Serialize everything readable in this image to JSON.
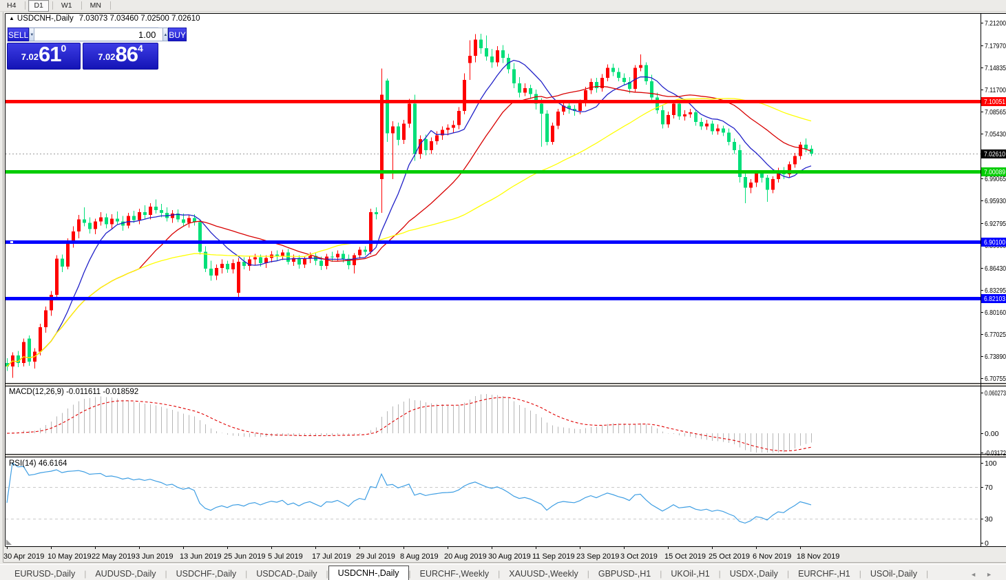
{
  "toolbar": {
    "timeframes": [
      {
        "label": "H4",
        "active": false
      },
      {
        "label": "D1",
        "active": true
      },
      {
        "label": "W1",
        "active": false
      },
      {
        "label": "MN",
        "active": false
      }
    ]
  },
  "chart_header": {
    "collapse_icon": "▲",
    "symbol": "USDCNH-,Daily",
    "ohlc": "7.03073 7.03460 7.02500 7.02610"
  },
  "trade_panel": {
    "sell_label": "SELL",
    "buy_label": "BUY",
    "volume": "1.00",
    "spin_down": "▼",
    "spin_up": "▲",
    "sell_price": {
      "small": "7.02",
      "big": "61",
      "sup": "0"
    },
    "buy_price": {
      "small": "7.02",
      "big": "86",
      "sup": "4"
    }
  },
  "tabs": {
    "items": [
      {
        "label": "EURUSD-,Daily",
        "active": false
      },
      {
        "label": "AUDUSD-,Daily",
        "active": false
      },
      {
        "label": "USDCHF-,Daily",
        "active": false
      },
      {
        "label": "USDCAD-,Daily",
        "active": false
      },
      {
        "label": "USDCNH-,Daily",
        "active": true
      },
      {
        "label": "EURCHF-,Weekly",
        "active": false
      },
      {
        "label": "XAUUSD-,Weekly",
        "active": false
      },
      {
        "label": "GBPUSD-,H1",
        "active": false
      },
      {
        "label": "UKOil-,H1",
        "active": false
      },
      {
        "label": "USDX-,Daily",
        "active": false
      },
      {
        "label": "EURCHF-,H1",
        "active": false
      },
      {
        "label": "USOil-,Daily",
        "active": false
      }
    ],
    "scroll_left": "◄",
    "scroll_right": "►"
  },
  "chart_data": {
    "type": "candlestick",
    "symbol": "USDCNH-",
    "timeframe": "Daily",
    "x_axis": {
      "bars_per_label": 8,
      "labels": [
        "30 Apr 2019",
        "10 May 2019",
        "22 May 2019",
        "3 Jun 2019",
        "13 Jun 2019",
        "25 Jun 2019",
        "5 Jul 2019",
        "17 Jul 2019",
        "29 Jul 2019",
        "8 Aug 2019",
        "20 Aug 2019",
        "30 Aug 2019",
        "11 Sep 2019",
        "23 Sep 2019",
        "3 Oct 2019",
        "15 Oct 2019",
        "25 Oct 2019",
        "6 Nov 2019",
        "18 Nov 2019"
      ]
    },
    "y_axis": {
      "ticks": [
        {
          "v": 7.212,
          "t": "7.21200"
        },
        {
          "v": 7.1797,
          "t": "7.17970"
        },
        {
          "v": 7.14835,
          "t": "7.14835"
        },
        {
          "v": 7.117,
          "t": "7.11700"
        },
        {
          "v": 7.08565,
          "t": "7.08565"
        },
        {
          "v": 7.0543,
          "t": "7.05430"
        },
        {
          "v": 7.02295,
          "t": "7.02295"
        },
        {
          "v": 6.99065,
          "t": "6.99065"
        },
        {
          "v": 6.9593,
          "t": "6.95930"
        },
        {
          "v": 6.92795,
          "t": "6.92795"
        },
        {
          "v": 6.8966,
          "t": "6.89660"
        },
        {
          "v": 6.8643,
          "t": "6.86430"
        },
        {
          "v": 6.83295,
          "t": "6.83295"
        },
        {
          "v": 6.8016,
          "t": "6.80160"
        },
        {
          "v": 6.77025,
          "t": "6.77025"
        },
        {
          "v": 6.7389,
          "t": "6.73890"
        },
        {
          "v": 6.70755,
          "t": "6.70755"
        }
      ]
    },
    "colors": {
      "up": "#FE0000",
      "down": "#00DF79",
      "ma_fast": "#2121C8",
      "ma_mid": "#D80000",
      "ma_slow": "#FFFF00",
      "macd_hist": "#B6B6B6",
      "macd_signal": "#E00000",
      "rsi": "#3E9EE3",
      "level_dash": "#C8C8C8",
      "current": "#000000",
      "current_line": "#999999"
    },
    "moving_averages": [
      {
        "period": 10,
        "color": "#2121C8"
      },
      {
        "period": 25,
        "color": "#D80000"
      },
      {
        "period": 55,
        "color": "#FFFF00"
      }
    ],
    "hlines": [
      {
        "price": 7.10051,
        "label": "7.10051",
        "color": "#FF0000"
      },
      {
        "price": 7.00089,
        "label": "7.00089",
        "color": "#00CC00"
      },
      {
        "price": 6.901,
        "label": "6.90100",
        "color": "#0000FF",
        "marker": true
      },
      {
        "price": 6.82103,
        "label": "6.82103",
        "color": "#0000FF"
      }
    ],
    "current_price": {
      "value": 7.0261,
      "label": "7.02610"
    },
    "macd": {
      "label": "MACD(12,26,9) -0.011611 -0.018592",
      "fast": 12,
      "slow": 26,
      "signal": 9,
      "value": -0.011611,
      "signal_value": -0.018592,
      "scale": [
        {
          "v": 0.060273,
          "t": "0.060273"
        },
        {
          "v": 0,
          "t": "0.00"
        },
        {
          "v": -0.03172,
          "t": "-0.03172"
        }
      ]
    },
    "rsi": {
      "label": "RSI(14) 46.6164",
      "period": 14,
      "value": 46.6164,
      "levels": [
        70,
        30
      ],
      "scale": [
        {
          "v": 100,
          "t": "100"
        },
        {
          "v": 70,
          "t": "70"
        },
        {
          "v": 30,
          "t": "30"
        },
        {
          "v": 0,
          "t": "0"
        }
      ]
    },
    "candles": [
      [
        6.729,
        6.736,
        6.718,
        6.724
      ],
      [
        6.724,
        6.744,
        6.708,
        6.74
      ],
      [
        6.74,
        6.746,
        6.723,
        6.729
      ],
      [
        6.729,
        6.764,
        6.724,
        6.759
      ],
      [
        6.764,
        6.768,
        6.725,
        6.731
      ],
      [
        6.731,
        6.75,
        6.721,
        6.745
      ],
      [
        6.745,
        6.785,
        6.74,
        6.78
      ],
      [
        6.78,
        6.809,
        6.772,
        6.804
      ],
      [
        6.804,
        6.831,
        6.796,
        6.826
      ],
      [
        6.826,
        6.882,
        6.823,
        6.877
      ],
      [
        6.877,
        6.883,
        6.858,
        6.866
      ],
      [
        6.866,
        6.906,
        6.862,
        6.901
      ],
      [
        6.901,
        6.923,
        6.893,
        6.916
      ],
      [
        6.916,
        6.939,
        6.906,
        6.933
      ],
      [
        6.933,
        6.95,
        6.923,
        6.928
      ],
      [
        6.928,
        6.936,
        6.913,
        6.919
      ],
      [
        6.919,
        6.934,
        6.912,
        6.93
      ],
      [
        6.93,
        6.943,
        6.924,
        6.936
      ],
      [
        6.936,
        6.941,
        6.92,
        6.926
      ],
      [
        6.926,
        6.94,
        6.919,
        6.934
      ],
      [
        6.934,
        6.944,
        6.926,
        6.93
      ],
      [
        6.93,
        6.938,
        6.917,
        6.924
      ],
      [
        6.924,
        6.942,
        6.92,
        6.938
      ],
      [
        6.938,
        6.945,
        6.928,
        6.932
      ],
      [
        6.932,
        6.948,
        6.926,
        6.943
      ],
      [
        6.943,
        6.953,
        6.934,
        6.939
      ],
      [
        6.939,
        6.956,
        6.933,
        6.951
      ],
      [
        6.951,
        6.961,
        6.941,
        6.946
      ],
      [
        6.946,
        6.955,
        6.936,
        6.942
      ],
      [
        6.942,
        6.95,
        6.93,
        6.935
      ],
      [
        6.935,
        6.946,
        6.928,
        6.941
      ],
      [
        6.941,
        6.947,
        6.929,
        6.933
      ],
      [
        6.933,
        6.941,
        6.923,
        6.928
      ],
      [
        6.928,
        6.939,
        6.921,
        6.935
      ],
      [
        6.935,
        6.94,
        6.924,
        6.929
      ],
      [
        6.929,
        6.933,
        6.883,
        6.887
      ],
      [
        6.887,
        6.895,
        6.858,
        6.863
      ],
      [
        6.863,
        6.874,
        6.846,
        6.853
      ],
      [
        6.853,
        6.869,
        6.847,
        6.864
      ],
      [
        6.864,
        6.876,
        6.856,
        6.87
      ],
      [
        6.87,
        6.874,
        6.857,
        6.862
      ],
      [
        6.862,
        6.876,
        6.856,
        6.871
      ],
      [
        6.829,
        6.878,
        6.8215,
        6.873
      ],
      [
        6.873,
        6.879,
        6.862,
        6.867
      ],
      [
        6.867,
        6.88,
        6.86,
        6.876
      ],
      [
        6.876,
        6.884,
        6.868,
        6.879
      ],
      [
        6.879,
        6.883,
        6.866,
        6.871
      ],
      [
        6.871,
        6.882,
        6.864,
        6.878
      ],
      [
        6.878,
        6.888,
        6.872,
        6.883
      ],
      [
        6.883,
        6.889,
        6.874,
        6.88
      ],
      [
        6.88,
        6.89,
        6.875,
        6.886
      ],
      [
        6.886,
        6.891,
        6.869,
        6.873
      ],
      [
        6.873,
        6.883,
        6.867,
        6.878
      ],
      [
        6.878,
        6.882,
        6.863,
        6.869
      ],
      [
        6.869,
        6.881,
        6.864,
        6.877
      ],
      [
        6.877,
        6.886,
        6.871,
        6.881
      ],
      [
        6.881,
        6.885,
        6.868,
        6.874
      ],
      [
        6.874,
        6.88,
        6.861,
        6.867
      ],
      [
        6.867,
        6.884,
        6.862,
        6.88
      ],
      [
        6.88,
        6.887,
        6.873,
        6.879
      ],
      [
        6.879,
        6.889,
        6.874,
        6.884
      ],
      [
        6.884,
        6.889,
        6.872,
        6.877
      ],
      [
        6.877,
        6.883,
        6.862,
        6.868
      ],
      [
        6.868,
        6.885,
        6.856,
        6.882
      ],
      [
        6.882,
        6.894,
        6.877,
        6.89
      ],
      [
        6.89,
        6.895,
        6.882,
        6.887
      ],
      [
        6.887,
        6.948,
        6.883,
        6.943
      ],
      [
        6.943,
        6.95,
        6.933,
        6.94
      ],
      [
        6.99,
        7.147,
        6.942,
        7.11
      ],
      [
        7.13,
        7.133,
        7.043,
        7.055
      ],
      [
        7.055,
        7.072,
        6.99,
        7.065
      ],
      [
        7.065,
        7.07,
        7.038,
        7.046
      ],
      [
        7.046,
        7.074,
        7.04,
        7.069
      ],
      [
        7.069,
        7.104,
        7.063,
        7.097
      ],
      [
        7.097,
        7.11,
        7.016,
        7.026
      ],
      [
        7.026,
        7.052,
        7.019,
        7.047
      ],
      [
        7.047,
        7.053,
        7.024,
        7.031
      ],
      [
        7.031,
        7.049,
        7.026,
        7.044
      ],
      [
        7.044,
        7.058,
        7.039,
        7.052
      ],
      [
        7.052,
        7.065,
        7.046,
        7.06
      ],
      [
        7.06,
        7.068,
        7.052,
        7.063
      ],
      [
        7.063,
        7.073,
        7.055,
        7.067
      ],
      [
        7.067,
        7.092,
        7.061,
        7.087
      ],
      [
        7.087,
        7.14,
        7.082,
        7.131
      ],
      [
        7.155,
        7.187,
        7.131,
        7.165
      ],
      [
        7.165,
        7.196,
        7.156,
        7.188
      ],
      [
        7.188,
        7.1965,
        7.168,
        7.176
      ],
      [
        7.176,
        7.194,
        7.158,
        7.164
      ],
      [
        7.164,
        7.175,
        7.148,
        7.156
      ],
      [
        7.156,
        7.179,
        7.15,
        7.173
      ],
      [
        7.173,
        7.18,
        7.155,
        7.162
      ],
      [
        7.162,
        7.168,
        7.14,
        7.146
      ],
      [
        7.146,
        7.155,
        7.119,
        7.126
      ],
      [
        7.126,
        7.135,
        7.106,
        7.113
      ],
      [
        7.113,
        7.126,
        7.108,
        7.119
      ],
      [
        7.119,
        7.124,
        7.104,
        7.111
      ],
      [
        7.111,
        7.117,
        7.089,
        7.097
      ],
      [
        7.097,
        7.105,
        7.036,
        7.083
      ],
      [
        7.083,
        7.088,
        7.038,
        7.043
      ],
      [
        7.043,
        7.07,
        7.039,
        7.066
      ],
      [
        7.066,
        7.09,
        7.061,
        7.086
      ],
      [
        7.086,
        7.099,
        7.081,
        7.094
      ],
      [
        7.094,
        7.098,
        7.083,
        7.09
      ],
      [
        7.09,
        7.095,
        7.08,
        7.087
      ],
      [
        7.087,
        7.103,
        7.082,
        7.098
      ],
      [
        7.098,
        7.121,
        7.093,
        7.116
      ],
      [
        7.116,
        7.133,
        7.111,
        7.128
      ],
      [
        7.128,
        7.134,
        7.113,
        7.119
      ],
      [
        7.119,
        7.139,
        7.114,
        7.134
      ],
      [
        7.134,
        7.153,
        7.129,
        7.148
      ],
      [
        7.148,
        7.154,
        7.136,
        7.142
      ],
      [
        7.142,
        7.148,
        7.129,
        7.134
      ],
      [
        7.134,
        7.14,
        7.123,
        7.128
      ],
      [
        7.128,
        7.135,
        7.112,
        7.118
      ],
      [
        7.118,
        7.152,
        7.113,
        7.148
      ],
      [
        7.148,
        7.167,
        7.143,
        7.152
      ],
      [
        7.152,
        7.156,
        7.124,
        7.129
      ],
      [
        7.129,
        7.138,
        7.101,
        7.106
      ],
      [
        7.106,
        7.113,
        7.083,
        7.088
      ],
      [
        7.088,
        7.094,
        7.062,
        7.068
      ],
      [
        7.068,
        7.086,
        7.063,
        7.081
      ],
      [
        7.081,
        7.101,
        7.076,
        7.097
      ],
      [
        7.097,
        7.102,
        7.074,
        7.079
      ],
      [
        7.079,
        7.088,
        7.073,
        7.082
      ],
      [
        7.082,
        7.09,
        7.077,
        7.085
      ],
      [
        7.085,
        7.089,
        7.066,
        7.071
      ],
      [
        7.071,
        7.077,
        7.06,
        7.065
      ],
      [
        7.065,
        7.074,
        7.06,
        7.069
      ],
      [
        7.069,
        7.073,
        7.053,
        7.058
      ],
      [
        7.058,
        7.068,
        7.053,
        7.062
      ],
      [
        7.062,
        7.066,
        7.051,
        7.056
      ],
      [
        7.056,
        7.062,
        7.038,
        7.043
      ],
      [
        7.043,
        7.048,
        7.026,
        7.031
      ],
      [
        7.031,
        7.039,
        6.985,
        6.993
      ],
      [
        6.993,
        6.998,
        6.956,
        6.978
      ],
      [
        6.978,
        6.99,
        6.97,
        6.985
      ],
      [
        6.985,
        7.003,
        6.979,
        6.998
      ],
      [
        6.998,
        7.002,
        6.985,
        6.992
      ],
      [
        6.992,
        6.996,
        6.958,
        6.975
      ],
      [
        6.975,
        6.994,
        6.97,
        6.99
      ],
      [
        6.99,
        7.006,
        6.985,
        7.002
      ],
      [
        7.002,
        7.007,
        6.99,
        6.997
      ],
      [
        6.997,
        7.015,
        6.992,
        7.011
      ],
      [
        7.011,
        7.027,
        7.006,
        7.023
      ],
      [
        7.023,
        7.043,
        7.018,
        7.039
      ],
      [
        7.039,
        7.048,
        7.028,
        7.033
      ],
      [
        7.033,
        7.038,
        7.023,
        7.0261
      ]
    ]
  }
}
